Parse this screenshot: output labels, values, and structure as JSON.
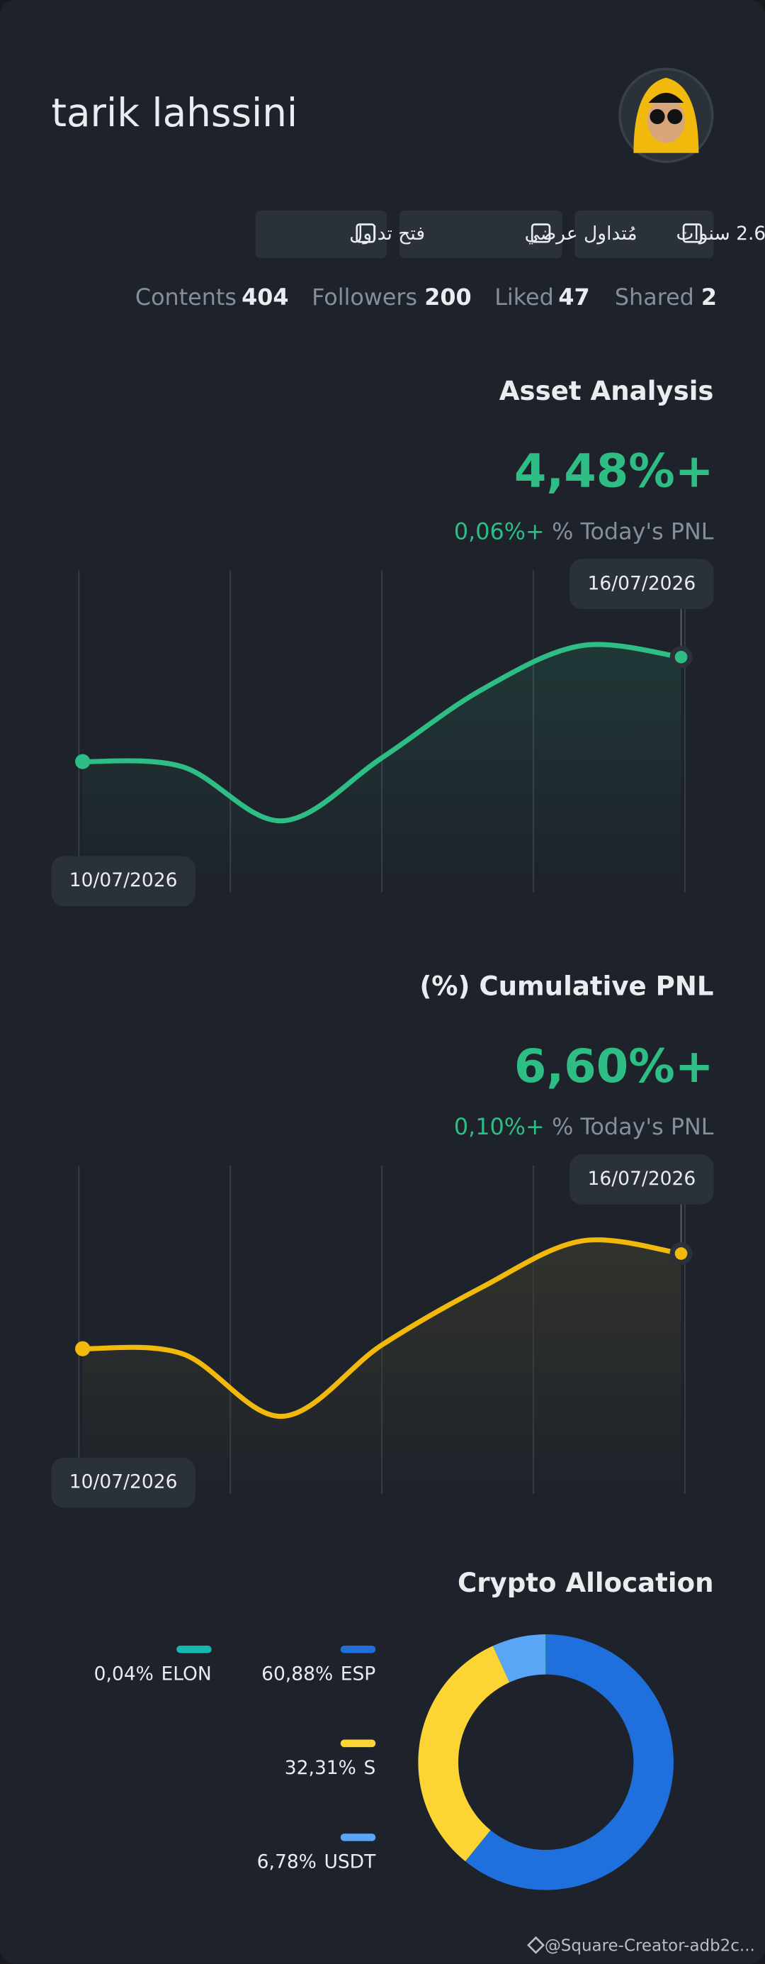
{
  "header": {
    "name": "tarik lahssini",
    "badges": [
      "2.6 سنوات",
      "مُتداول عرضي",
      "فتح تداول"
    ]
  },
  "stats": [
    {
      "label": "Contents",
      "value": 404
    },
    {
      "label": "Followers",
      "value": 200
    },
    {
      "label": "Liked",
      "value": 47
    },
    {
      "label": "Shared",
      "value": 2
    }
  ],
  "charts": [
    {
      "title": "Asset Analysis",
      "total": "4,48%+",
      "today_value": "0,06%+",
      "today_label": "% Today's PNL",
      "chart_data": {
        "type": "line",
        "categories": [
          "10/07/2026",
          null,
          null,
          null,
          null,
          null,
          "16/07/2026"
        ],
        "series": [
          {
            "color": "#2ebd85",
            "values": [
              0,
              -0.22,
              -2.54,
              0.16,
              3.08,
              4.97,
              4.48
            ]
          }
        ],
        "ylim": [
          -5.5,
          8.2
        ]
      }
    },
    {
      "title": "(%) Cumulative PNL",
      "total": "6,60%+",
      "today_value": "0,10%+",
      "today_label": "% Today's PNL",
      "chart_data": {
        "type": "line",
        "categories": [
          "10/07/2026",
          null,
          null,
          null,
          null,
          null,
          "16/07/2026"
        ],
        "series": [
          {
            "color": "#f0b90b",
            "values": [
              0,
              -0.35,
              -4.69,
              0.26,
              4.25,
              7.47,
              6.6
            ]
          }
        ],
        "ylim": [
          -9.9,
          12.7
        ]
      }
    }
  ],
  "allocation": {
    "title": "Crypto Allocation",
    "chart_data": {
      "type": "donut",
      "categories": [
        "ESP",
        "S",
        "USDT",
        "ELON"
      ],
      "values": [
        60.88,
        32.31,
        6.78,
        0.04
      ],
      "value_labels": [
        "60,88%",
        "32,31%",
        "6,78%",
        "0,04%"
      ],
      "colors": [
        "#1f6fdc",
        "#fcd535",
        "#5aa5f5",
        "#14b8b0"
      ]
    }
  },
  "footer": "@Square-Creator-adb2c..."
}
